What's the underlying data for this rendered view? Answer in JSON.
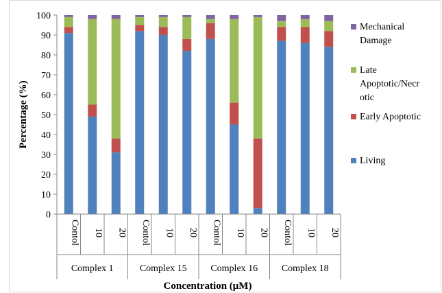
{
  "chart_data": {
    "type": "bar",
    "stacked": true,
    "title": "",
    "xlabel": "Concentration (μM)",
    "ylabel": "Percentage (%)",
    "ylim": [
      0,
      100
    ],
    "yticks": [
      0,
      10,
      20,
      30,
      40,
      50,
      60,
      70,
      80,
      90,
      100
    ],
    "grid": false,
    "legend_position": "right",
    "groups": [
      {
        "label": "Complex 1",
        "categories": [
          "Contol",
          "10",
          "20"
        ]
      },
      {
        "label": "Complex 15",
        "categories": [
          "Contol",
          "10",
          "20"
        ]
      },
      {
        "label": "Complex 16",
        "categories": [
          "Contol",
          "10",
          "20"
        ]
      },
      {
        "label": "Complex 18",
        "categories": [
          "Contol",
          "10",
          "20"
        ]
      }
    ],
    "series": [
      {
        "name": "Living",
        "color": "#4f81bd",
        "values": [
          91,
          49,
          31,
          92,
          90,
          82,
          88,
          45,
          3,
          87,
          86,
          84
        ]
      },
      {
        "name": "Early Apoptotic",
        "color": "#c0504d",
        "values": [
          3,
          6,
          7,
          3,
          4,
          6,
          8,
          11,
          35,
          7,
          8,
          8
        ]
      },
      {
        "name": "Late Apoptotic/Necrotic",
        "color": "#9bbb59",
        "values": [
          5,
          43,
          60,
          4,
          5,
          11,
          2,
          42,
          61,
          3,
          4,
          5
        ]
      },
      {
        "name": "Mechanical Damage",
        "color": "#8064a2",
        "values": [
          1,
          2,
          2,
          1,
          1,
          1,
          2,
          2,
          1,
          3,
          2,
          3
        ]
      }
    ],
    "legend": [
      {
        "series": "Mechanical Damage",
        "lines": [
          "Mechanical",
          "Damage"
        ]
      },
      {
        "series": "Late Apoptotic/Necrotic",
        "lines": [
          "Late",
          "Apoptotic/Necr",
          "otic"
        ]
      },
      {
        "series": "Early Apoptotic",
        "lines": [
          "Early Apoptotic"
        ]
      },
      {
        "series": "Living",
        "lines": [
          "Living"
        ]
      }
    ]
  }
}
